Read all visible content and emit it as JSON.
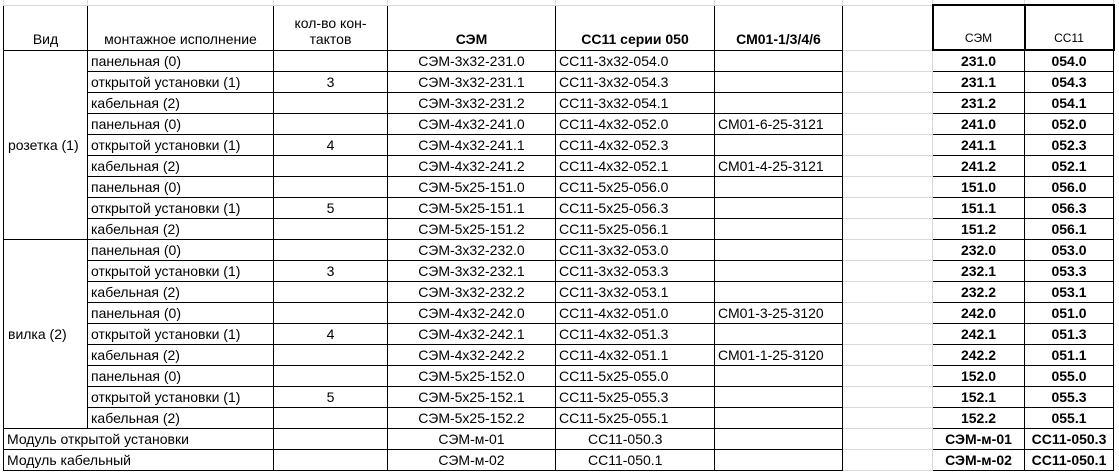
{
  "headers": {
    "vid": "Вид",
    "mounting": "монтажное исполнение",
    "contacts": "кол-во кон-тактов",
    "sem": "СЭМ",
    "ss11": "СС11 серии 050",
    "sm01": "СМ01-1/3/4/6",
    "short_sem": "СЭМ",
    "short_ss11": "СС11"
  },
  "groups": [
    {
      "vid": "розетка (1)"
    },
    {
      "vid": "вилка (2)"
    }
  ],
  "rows": [
    {
      "mount": "панельная (0)",
      "contacts": "",
      "sem": "СЭМ-3х32-231.0",
      "ss11": "СС11-3х32-054.0",
      "sm01": "",
      "s_sem": "231.0",
      "s_ss11": "054.0"
    },
    {
      "mount": "открытой установки (1)",
      "contacts": "3",
      "sem": "СЭМ-3х32-231.1",
      "ss11": "СС11-3х32-054.3",
      "sm01": "",
      "s_sem": "231.1",
      "s_ss11": "054.3"
    },
    {
      "mount": "кабельная (2)",
      "contacts": "",
      "sem": "СЭМ-3х32-231.2",
      "ss11": "СС11-3х32-054.1",
      "sm01": "",
      "s_sem": "231.2",
      "s_ss11": "054.1"
    },
    {
      "mount": "панельная (0)",
      "contacts": "",
      "sem": "СЭМ-4х32-241.0",
      "ss11": "СС11-4х32-052.0",
      "sm01": "СМ01-6-25-3121",
      "s_sem": "241.0",
      "s_ss11": "052.0"
    },
    {
      "mount": "открытой установки (1)",
      "contacts": "4",
      "sem": "СЭМ-4х32-241.1",
      "ss11": "СС11-4х32-052.3",
      "sm01": "",
      "s_sem": "241.1",
      "s_ss11": "052.3"
    },
    {
      "mount": "кабельная (2)",
      "contacts": "",
      "sem": "СЭМ-4х32-241.2",
      "ss11": "СС11-4х32-052.1",
      "sm01": "СМ01-4-25-3121",
      "s_sem": "241.2",
      "s_ss11": "052.1"
    },
    {
      "mount": "панельная (0)",
      "contacts": "",
      "sem": "СЭМ-5х25-151.0",
      "ss11": "СС11-5х25-056.0",
      "sm01": "",
      "s_sem": "151.0",
      "s_ss11": "056.0"
    },
    {
      "mount": "открытой установки (1)",
      "contacts": "5",
      "sem": "СЭМ-5х25-151.1",
      "ss11": "СС11-5х25-056.3",
      "sm01": "",
      "s_sem": "151.1",
      "s_ss11": "056.3"
    },
    {
      "mount": "кабельная (2)",
      "contacts": "",
      "sem": "СЭМ-5х25-151.2",
      "ss11": "СС11-5х25-056.1",
      "sm01": "",
      "s_sem": "151.2",
      "s_ss11": "056.1"
    },
    {
      "mount": "панельная (0)",
      "contacts": "",
      "sem": "СЭМ-3х32-232.0",
      "ss11": "СС11-3х32-053.0",
      "sm01": "",
      "s_sem": "232.0",
      "s_ss11": "053.0"
    },
    {
      "mount": "открытой установки (1)",
      "contacts": "3",
      "sem": "СЭМ-3х32-232.1",
      "ss11": "СС11-3х32-053.3",
      "sm01": "",
      "s_sem": "232.1",
      "s_ss11": "053.3"
    },
    {
      "mount": "кабельная (2)",
      "contacts": "",
      "sem": "СЭМ-3х32-232.2",
      "ss11": "СС11-3х32-053.1",
      "sm01": "",
      "s_sem": "232.2",
      "s_ss11": "053.1"
    },
    {
      "mount": "панельная (0)",
      "contacts": "",
      "sem": "СЭМ-4х32-242.0",
      "ss11": "СС11-4х32-051.0",
      "sm01": "СМ01-3-25-3120",
      "s_sem": "242.0",
      "s_ss11": "051.0"
    },
    {
      "mount": "открытой установки (1)",
      "contacts": "4",
      "sem": "СЭМ-4х32-242.1",
      "ss11": "СС11-4х32-051.3",
      "sm01": "",
      "s_sem": "242.1",
      "s_ss11": "051.3"
    },
    {
      "mount": "кабельная (2)",
      "contacts": "",
      "sem": "СЭМ-4х32-242.2",
      "ss11": "СС11-4х32-051.1",
      "sm01": "СМ01-1-25-3120",
      "s_sem": "242.2",
      "s_ss11": "051.1"
    },
    {
      "mount": "панельная (0)",
      "contacts": "",
      "sem": "СЭМ-5х25-152.0",
      "ss11": "СС11-5х25-055.0",
      "sm01": "",
      "s_sem": "152.0",
      "s_ss11": "055.0"
    },
    {
      "mount": "открытой установки (1)",
      "contacts": "5",
      "sem": "СЭМ-5х25-152.1",
      "ss11": "СС11-5х25-055.3",
      "sm01": "",
      "s_sem": "152.1",
      "s_ss11": "055.3"
    },
    {
      "mount": "кабельная (2)",
      "contacts": "",
      "sem": "СЭМ-5х25-152.2",
      "ss11": "СС11-5х25-055.1",
      "sm01": "",
      "s_sem": "152.2",
      "s_ss11": "055.1"
    }
  ],
  "modules": [
    {
      "label": "Модуль открытой установки",
      "sem": "СЭМ-м-01",
      "ss11": "СС11-050.3",
      "s_sem": "СЭМ-м-01",
      "s_ss11": "СС11-050.3"
    },
    {
      "label": "Модуль кабельный",
      "sem": "СЭМ-м-02",
      "ss11": "СС11-050.1",
      "s_sem": "СЭМ-м-02",
      "s_ss11": "СС11-050.1"
    }
  ]
}
